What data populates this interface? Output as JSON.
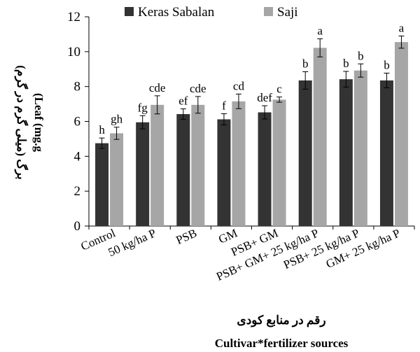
{
  "chart_data": {
    "type": "bar",
    "categories": [
      "Control",
      "50 kg/ha P",
      "PSB",
      "GM",
      "PSB+ GM",
      "PSB+ GM+ 25 kg/ha P",
      "PSB+ 25 kg/ha P",
      "GM+ 25 kg/ha P"
    ],
    "series": [
      {
        "name": "Keras Sabalan",
        "color": "#333333",
        "values": [
          4.75,
          5.95,
          6.42,
          6.12,
          6.52,
          8.35,
          8.42,
          8.35
        ],
        "errors": [
          0.3,
          0.38,
          0.3,
          0.32,
          0.38,
          0.5,
          0.45,
          0.42
        ],
        "labels": [
          "h",
          "fg",
          "ef",
          "f",
          "def",
          "b",
          "b",
          "b"
        ]
      },
      {
        "name": "Saji",
        "color": "#a6a6a6",
        "values": [
          5.32,
          6.95,
          6.95,
          7.15,
          7.25,
          10.22,
          8.92,
          10.55
        ],
        "errors": [
          0.35,
          0.52,
          0.48,
          0.42,
          0.15,
          0.52,
          0.38,
          0.35
        ],
        "labels": [
          "gh",
          "cde",
          "cde",
          "cd",
          "c",
          "a",
          "b",
          "a"
        ]
      }
    ],
    "ylabel_fa": "برگ (میلی گرم در گرم)",
    "ylabel_en": "(Leaf (mg.g",
    "xlabel_fa": "رقم در منابع کودی",
    "xlabel_en": "Cultivar*fertilizer sources",
    "ylim": [
      0,
      12
    ],
    "yticks": [
      0,
      2,
      4,
      6,
      8,
      10,
      12
    ],
    "grid": false,
    "legend_position": "top"
  }
}
